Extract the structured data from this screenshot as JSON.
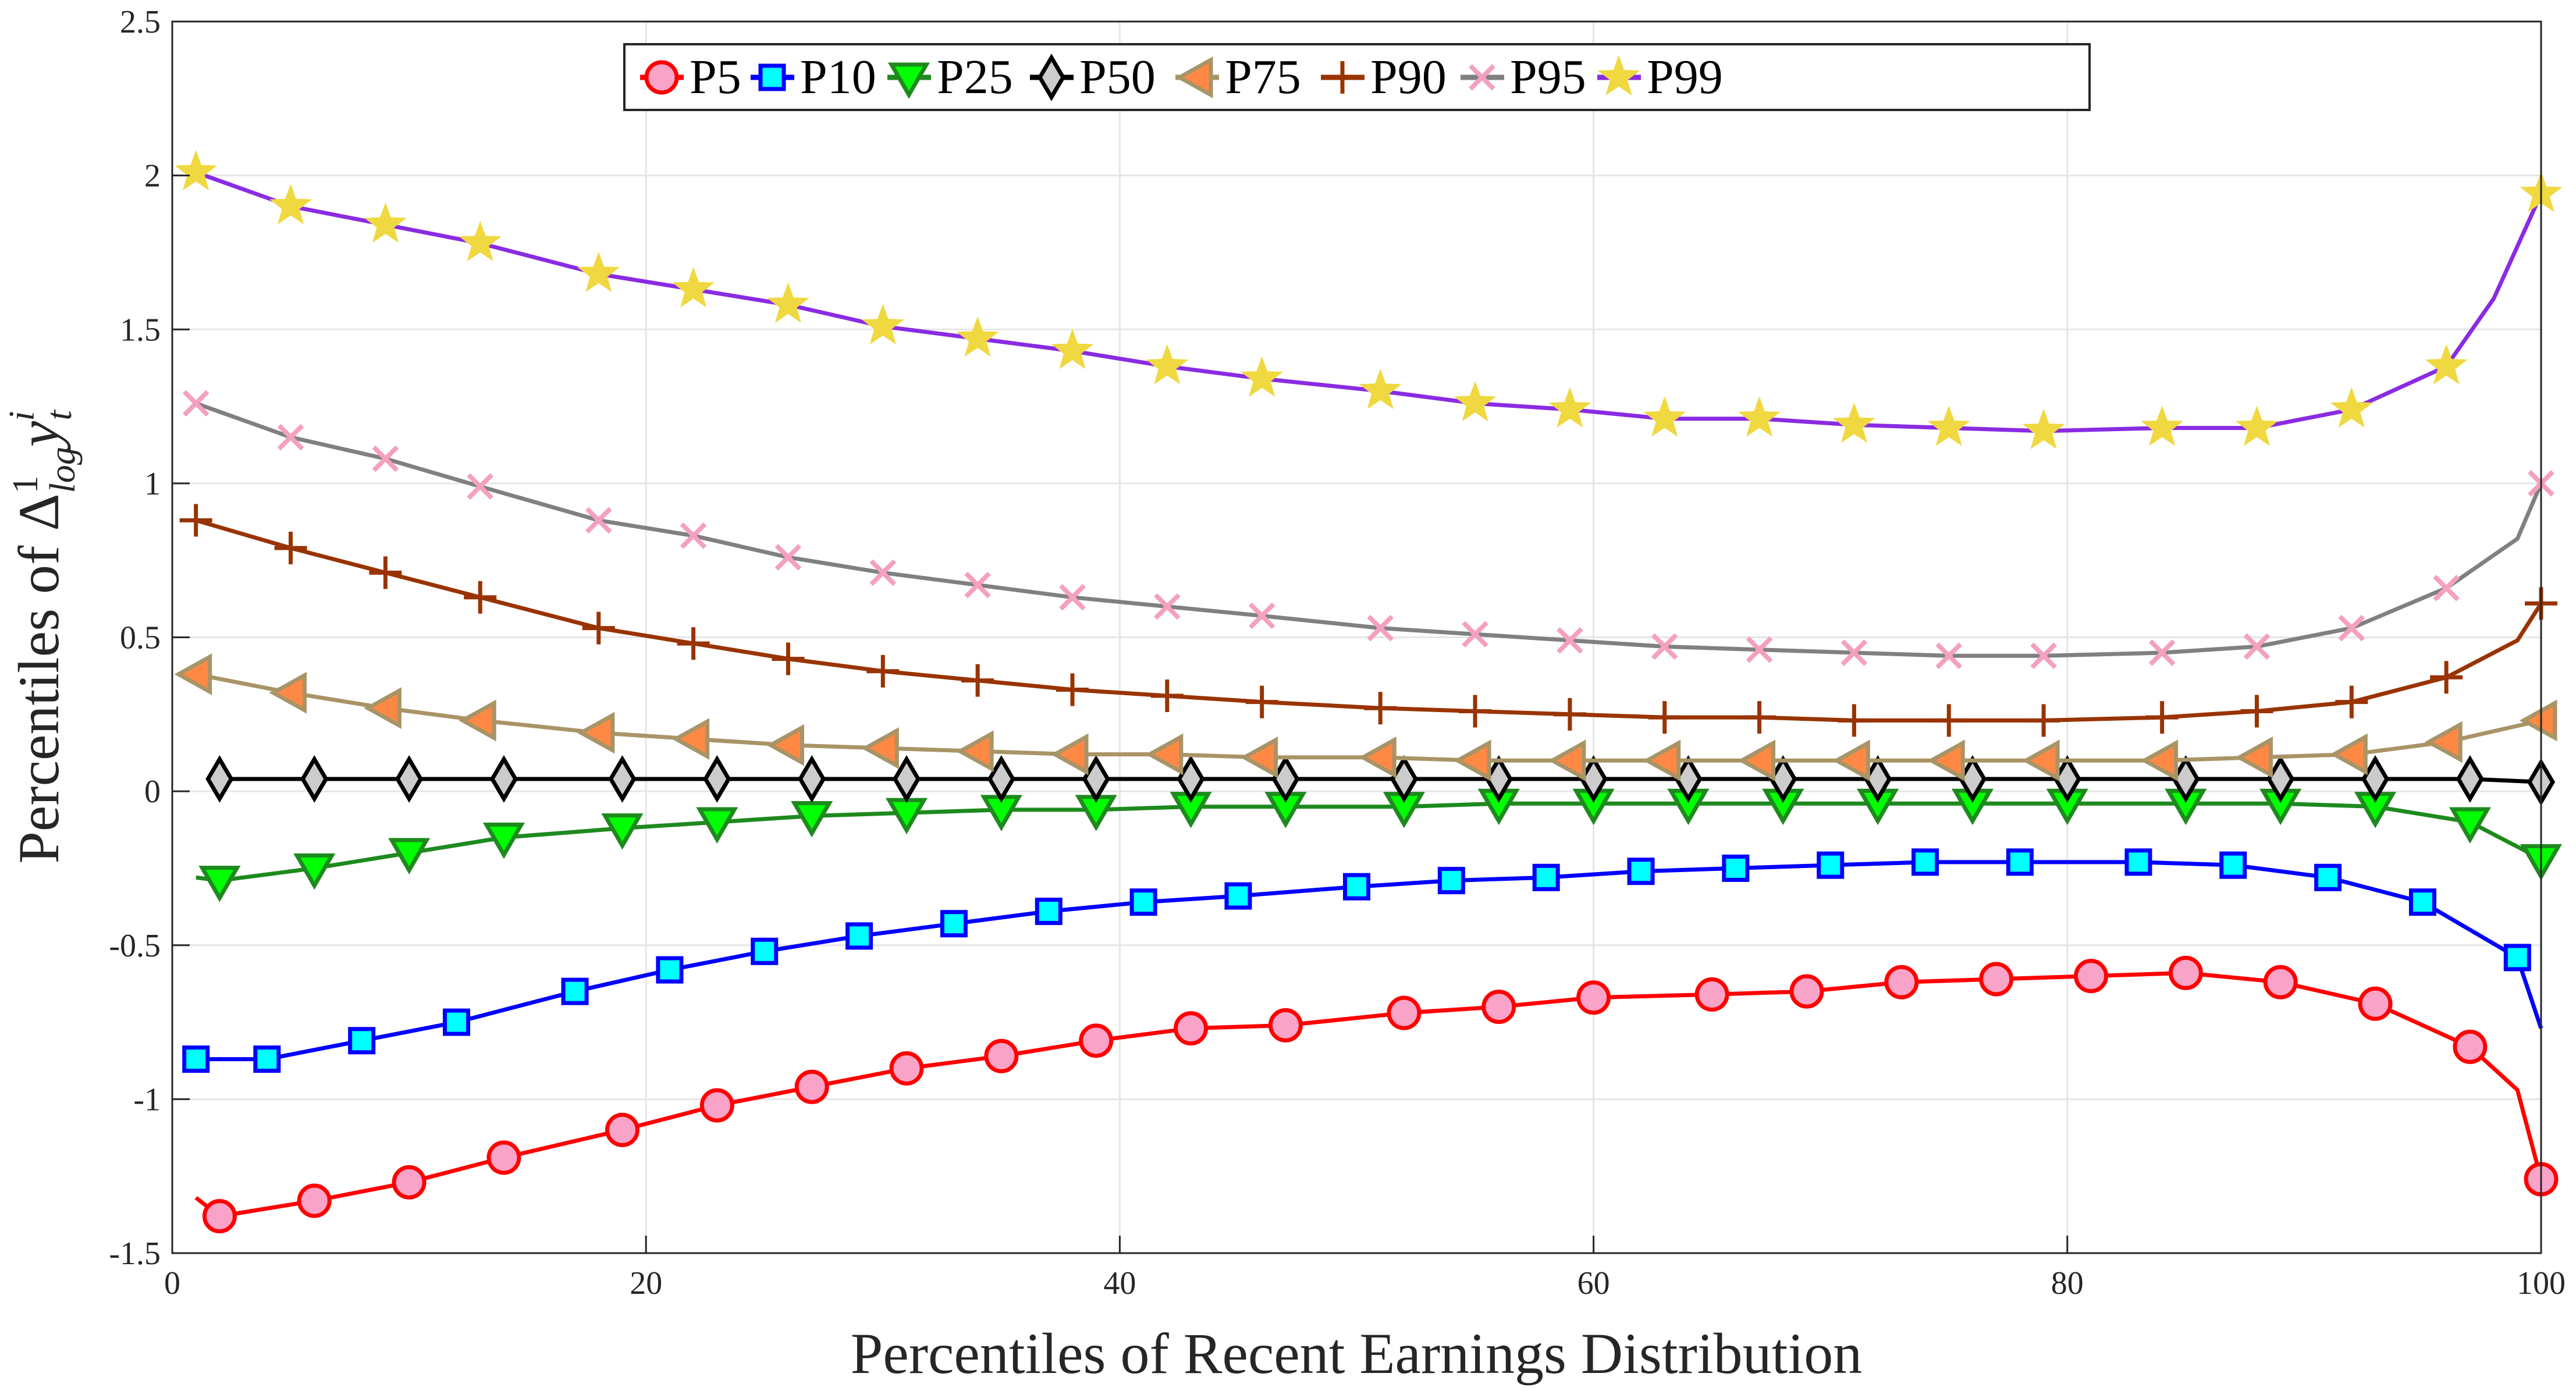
{
  "chart_data": {
    "type": "line",
    "title": "",
    "xlabel": "Percentiles of Recent Earnings Distribution",
    "ylabel": "Percentiles of Δ",
    "ylabel_math": {
      "sup": "1",
      "sub": "log",
      "var": "y",
      "var_sub": "t",
      "var_sup": "i"
    },
    "xlim": [
      0,
      100
    ],
    "ylim": [
      -1.5,
      2.5
    ],
    "xticks": [
      0,
      20,
      40,
      60,
      80,
      100
    ],
    "yticks": [
      -1.5,
      -1,
      -0.5,
      0,
      0.5,
      1,
      1.5,
      2,
      2.5
    ],
    "ytick_labels": [
      "-1.5",
      "-1",
      "-0.5",
      "0",
      "0.5",
      "1",
      "1.5",
      "2",
      "2.5"
    ],
    "grid": true,
    "legend_position": "top",
    "series": [
      {
        "name": "P5",
        "line": "#ff0000",
        "fill": "#f9a3c8",
        "marker": "circle",
        "x": [
          1,
          2,
          6,
          10,
          14,
          19,
          23,
          27,
          31,
          35,
          39,
          43,
          47,
          52,
          56,
          60,
          65,
          69,
          73,
          77,
          81,
          85,
          89,
          93,
          97,
          99,
          100
        ],
        "y": [
          -1.32,
          -1.38,
          -1.33,
          -1.27,
          -1.19,
          -1.1,
          -1.02,
          -0.96,
          -0.9,
          -0.86,
          -0.81,
          -0.77,
          -0.76,
          -0.72,
          -0.7,
          -0.67,
          -0.66,
          -0.65,
          -0.62,
          -0.61,
          -0.6,
          -0.59,
          -0.62,
          -0.69,
          -0.83,
          -0.97,
          -1.26
        ],
        "line_only_x": [
          1,
          99
        ]
      },
      {
        "name": "P10",
        "line": "#0000ff",
        "fill": "#00ffff",
        "marker": "square",
        "x": [
          1,
          4,
          8,
          12,
          17,
          21,
          25,
          29,
          33,
          37,
          41,
          45,
          50,
          54,
          58,
          62,
          66,
          70,
          74,
          78,
          83,
          87,
          91,
          95,
          99,
          100
        ],
        "y": [
          -0.87,
          -0.87,
          -0.81,
          -0.75,
          -0.65,
          -0.58,
          -0.52,
          -0.47,
          -0.43,
          -0.39,
          -0.36,
          -0.34,
          -0.31,
          -0.29,
          -0.28,
          -0.26,
          -0.25,
          -0.24,
          -0.23,
          -0.23,
          -0.23,
          -0.24,
          -0.28,
          -0.36,
          -0.54,
          -0.77
        ],
        "line_only_x": [
          100
        ]
      },
      {
        "name": "P25",
        "line": "#1e8a1e",
        "fill": "#00ff00",
        "marker": "triangle-down",
        "x": [
          1,
          2,
          6,
          10,
          14,
          19,
          23,
          27,
          31,
          35,
          39,
          43,
          47,
          52,
          56,
          60,
          64,
          68,
          72,
          76,
          80,
          85,
          89,
          93,
          97,
          100
        ],
        "y": [
          -0.28,
          -0.29,
          -0.25,
          -0.2,
          -0.15,
          -0.12,
          -0.1,
          -0.08,
          -0.07,
          -0.06,
          -0.06,
          -0.05,
          -0.05,
          -0.05,
          -0.04,
          -0.04,
          -0.04,
          -0.04,
          -0.04,
          -0.04,
          -0.04,
          -0.04,
          -0.04,
          -0.05,
          -0.1,
          -0.22
        ],
        "line_only_x": [
          1
        ]
      },
      {
        "name": "P50",
        "line": "#000000",
        "fill": "#cccccc",
        "marker": "diamond",
        "x": [
          2,
          6,
          10,
          14,
          19,
          23,
          27,
          31,
          35,
          39,
          43,
          47,
          52,
          56,
          60,
          64,
          68,
          72,
          76,
          80,
          85,
          89,
          93,
          97,
          100
        ],
        "y": [
          0.04,
          0.04,
          0.04,
          0.04,
          0.04,
          0.04,
          0.04,
          0.04,
          0.04,
          0.04,
          0.04,
          0.04,
          0.04,
          0.04,
          0.04,
          0.04,
          0.04,
          0.04,
          0.04,
          0.04,
          0.04,
          0.04,
          0.04,
          0.04,
          0.03
        ],
        "line_only_x": []
      },
      {
        "name": "P75",
        "line": "#a89466",
        "fill": "#ff8844",
        "marker": "triangle-left",
        "x": [
          1,
          5,
          9,
          13,
          18,
          22,
          26,
          30,
          34,
          38,
          42,
          46,
          51,
          55,
          59,
          63,
          67,
          71,
          75,
          79,
          84,
          88,
          92,
          96,
          100
        ],
        "y": [
          0.38,
          0.32,
          0.27,
          0.23,
          0.19,
          0.17,
          0.15,
          0.14,
          0.13,
          0.12,
          0.12,
          0.11,
          0.11,
          0.1,
          0.1,
          0.1,
          0.1,
          0.1,
          0.1,
          0.1,
          0.1,
          0.11,
          0.12,
          0.16,
          0.23
        ],
        "line_only_x": []
      },
      {
        "name": "P90",
        "line": "#993300",
        "fill": "#993300",
        "marker": "plus",
        "x": [
          1,
          5,
          9,
          13,
          18,
          22,
          26,
          30,
          34,
          38,
          42,
          46,
          51,
          55,
          59,
          63,
          67,
          71,
          75,
          79,
          84,
          88,
          92,
          96,
          99,
          100
        ],
        "y": [
          0.88,
          0.79,
          0.71,
          0.63,
          0.53,
          0.48,
          0.43,
          0.39,
          0.36,
          0.33,
          0.31,
          0.29,
          0.27,
          0.26,
          0.25,
          0.24,
          0.24,
          0.23,
          0.23,
          0.23,
          0.24,
          0.26,
          0.29,
          0.37,
          0.49,
          0.61
        ],
        "line_only_x": [
          99
        ]
      },
      {
        "name": "P95",
        "line": "#808080",
        "fill": "#f4a0c0",
        "marker": "x",
        "x": [
          1,
          5,
          9,
          13,
          18,
          22,
          26,
          30,
          34,
          38,
          42,
          46,
          51,
          55,
          59,
          63,
          67,
          71,
          75,
          79,
          84,
          88,
          92,
          96,
          99,
          100
        ],
        "y": [
          1.26,
          1.15,
          1.08,
          0.99,
          0.88,
          0.83,
          0.76,
          0.71,
          0.67,
          0.63,
          0.6,
          0.57,
          0.53,
          0.51,
          0.49,
          0.47,
          0.46,
          0.45,
          0.44,
          0.44,
          0.45,
          0.47,
          0.53,
          0.66,
          0.82,
          1.0
        ],
        "line_only_x": [
          99
        ]
      },
      {
        "name": "P99",
        "line": "#8a2be2",
        "fill": "#f0d840",
        "marker": "star",
        "x": [
          1,
          5,
          9,
          13,
          18,
          22,
          26,
          30,
          34,
          38,
          42,
          46,
          51,
          55,
          59,
          63,
          67,
          71,
          75,
          79,
          84,
          88,
          92,
          96,
          98,
          100
        ],
        "y": [
          2.01,
          1.9,
          1.84,
          1.78,
          1.68,
          1.63,
          1.58,
          1.51,
          1.47,
          1.43,
          1.38,
          1.34,
          1.3,
          1.26,
          1.24,
          1.21,
          1.21,
          1.19,
          1.18,
          1.17,
          1.18,
          1.18,
          1.24,
          1.38,
          1.6,
          1.94
        ],
        "line_only_x": [
          98
        ]
      }
    ]
  }
}
